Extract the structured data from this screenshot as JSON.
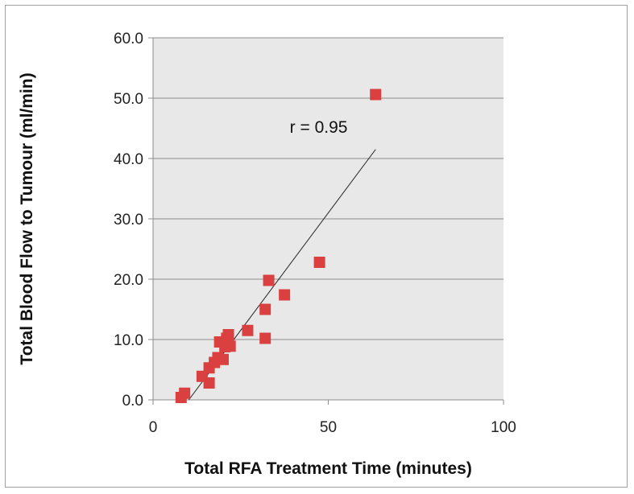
{
  "chart_data": {
    "type": "scatter",
    "xlabel": "Total RFA Treatment Time (minutes)",
    "ylabel": "Total Blood Flow to Tumour (ml/min)",
    "xlim": [
      0,
      100
    ],
    "ylim": [
      0,
      60
    ],
    "xticks": [
      0,
      50,
      100
    ],
    "yticks": [
      0.0,
      10.0,
      20.0,
      30.0,
      40.0,
      50.0,
      60.0
    ],
    "xtick_labels": [
      "0",
      "50",
      "100"
    ],
    "ytick_labels": [
      "0.0",
      "10.0",
      "20.0",
      "30.0",
      "40.0",
      "50.0",
      "60.0"
    ],
    "grid": "horizontal",
    "plot_background": "#e8e8e8",
    "marker_color": "#d9403f",
    "marker_shape": "square",
    "points": [
      {
        "x": 8,
        "y": 0.4
      },
      {
        "x": 9,
        "y": 1.1
      },
      {
        "x": 14,
        "y": 3.9
      },
      {
        "x": 16,
        "y": 2.8
      },
      {
        "x": 16,
        "y": 5.3
      },
      {
        "x": 17.5,
        "y": 6.2
      },
      {
        "x": 18.5,
        "y": 7.0
      },
      {
        "x": 19,
        "y": 9.6
      },
      {
        "x": 20,
        "y": 6.7
      },
      {
        "x": 20.5,
        "y": 8.8
      },
      {
        "x": 21,
        "y": 10.2
      },
      {
        "x": 21.5,
        "y": 10.8
      },
      {
        "x": 22,
        "y": 8.9
      },
      {
        "x": 27,
        "y": 11.5
      },
      {
        "x": 32,
        "y": 15.0
      },
      {
        "x": 32,
        "y": 10.2
      },
      {
        "x": 33,
        "y": 19.8
      },
      {
        "x": 37.5,
        "y": 17.4
      },
      {
        "x": 47.5,
        "y": 22.8
      },
      {
        "x": 63.5,
        "y": 50.6
      }
    ],
    "trendline": {
      "x": [
        10.2,
        63.5
      ],
      "y": [
        0,
        41.5
      ],
      "color": "#222222"
    },
    "annotation": {
      "text": "r = 0.95",
      "x": 39,
      "y": 44.3
    }
  }
}
